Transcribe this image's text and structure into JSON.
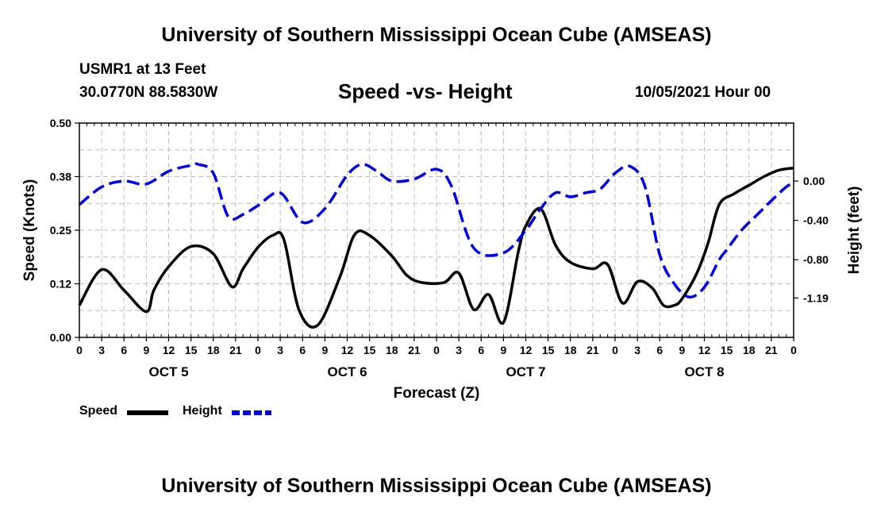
{
  "header": {
    "title": "University of Southern Mississippi Ocean Cube (AMSEAS)",
    "station": "USMR1 at 13 Feet",
    "coords": "30.0770N  88.5830W",
    "plot_title": "Speed -vs- Height",
    "date": "10/05/2021 Hour 00"
  },
  "footer": {
    "title": "University of Southern Mississippi Ocean Cube (AMSEAS)"
  },
  "legend": {
    "speed_label": "Speed",
    "height_label": "Height"
  },
  "colors": {
    "speed": "#000000",
    "height": "#0000cc",
    "grid": "#bbbbbb"
  },
  "chart_data": {
    "type": "line",
    "title": "Speed -vs- Height",
    "xlabel": "Forecast (Z)",
    "ylabel_left": "Speed (Knots)",
    "ylabel_right": "Height (feet)",
    "x_hours_range": [
      0,
      96
    ],
    "hour_tick_labels": [
      "0",
      "3",
      "6",
      "9",
      "12",
      "15",
      "18",
      "21",
      "0",
      "3",
      "6",
      "9",
      "12",
      "15",
      "18",
      "21",
      "0",
      "3",
      "6",
      "9",
      "12",
      "15",
      "18",
      "21",
      "0",
      "3",
      "6",
      "9",
      "12",
      "15",
      "18",
      "21",
      "0"
    ],
    "date_labels": [
      {
        "label": "OCT 5",
        "hour": 12
      },
      {
        "label": "OCT 6",
        "hour": 36
      },
      {
        "label": "OCT 7",
        "hour": 60
      },
      {
        "label": "OCT 8",
        "hour": 84
      }
    ],
    "ylim_left": [
      0,
      0.5
    ],
    "yticks_left": [
      0,
      0.125,
      0.25,
      0.375,
      0.5
    ],
    "ytick_labels_left": [
      "0.00",
      "0.12",
      "0.25",
      "0.38",
      "0.50"
    ],
    "ylim_right": [
      -1.59,
      0.59
    ],
    "yticks_right": [
      0,
      -0.4,
      -0.8,
      -1.19
    ],
    "ytick_labels_right": [
      "0.00",
      "-0.40",
      "-0.80",
      "-1.19"
    ],
    "grid": true,
    "series": [
      {
        "name": "Speed",
        "axis": "left",
        "style": "solid",
        "x": [
          0,
          3,
          6,
          9,
          10,
          12,
          15,
          18,
          20.5,
          22,
          24,
          26,
          27.5,
          29.5,
          32,
          35,
          37,
          39,
          42,
          44,
          46,
          49,
          51,
          53,
          55,
          57,
          59,
          60,
          62,
          64,
          66,
          69,
          71,
          73,
          75,
          77,
          78.5,
          80,
          81,
          83,
          84.5,
          86,
          88,
          90,
          92,
          94,
          96
        ],
        "values": [
          0.075,
          0.158,
          0.11,
          0.06,
          0.11,
          0.165,
          0.212,
          0.195,
          0.118,
          0.16,
          0.21,
          0.238,
          0.228,
          0.065,
          0.028,
          0.14,
          0.24,
          0.238,
          0.19,
          0.145,
          0.128,
          0.128,
          0.15,
          0.065,
          0.1,
          0.035,
          0.2,
          0.26,
          0.3,
          0.215,
          0.175,
          0.16,
          0.17,
          0.08,
          0.13,
          0.115,
          0.075,
          0.075,
          0.09,
          0.15,
          0.22,
          0.31,
          0.335,
          0.355,
          0.375,
          0.39,
          0.395
        ]
      },
      {
        "name": "Height",
        "axis": "right",
        "style": "dashed",
        "x": [
          0,
          3,
          6,
          9,
          12,
          15,
          16,
          18,
          20,
          22,
          24,
          27,
          30,
          33,
          36,
          38,
          40,
          42,
          45,
          48,
          50,
          53,
          57,
          60,
          62,
          64,
          66,
          68,
          70,
          72,
          74,
          76,
          78,
          80,
          82,
          84,
          86,
          87,
          89,
          91,
          93,
          95,
          96
        ],
        "values": [
          -0.24,
          -0.06,
          0.0,
          -0.03,
          0.1,
          0.16,
          0.17,
          0.08,
          -0.36,
          -0.34,
          -0.25,
          -0.12,
          -0.42,
          -0.28,
          0.06,
          0.17,
          0.1,
          0.0,
          0.02,
          0.12,
          -0.05,
          -0.68,
          -0.73,
          -0.5,
          -0.28,
          -0.12,
          -0.16,
          -0.12,
          -0.08,
          0.08,
          0.15,
          -0.05,
          -0.75,
          -1.05,
          -1.18,
          -1.08,
          -0.8,
          -0.7,
          -0.5,
          -0.35,
          -0.2,
          -0.06,
          -0.02
        ]
      }
    ]
  }
}
